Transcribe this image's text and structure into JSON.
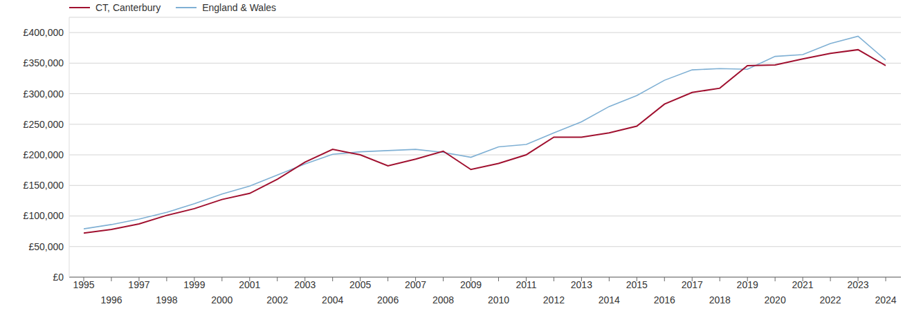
{
  "chart_data": {
    "type": "line",
    "x": [
      1995,
      1996,
      1997,
      1998,
      1999,
      2000,
      2001,
      2002,
      2003,
      2004,
      2005,
      2006,
      2007,
      2008,
      2009,
      2010,
      2011,
      2012,
      2013,
      2014,
      2015,
      2016,
      2017,
      2018,
      2019,
      2020,
      2021,
      2022,
      2023,
      2024
    ],
    "series": [
      {
        "name": "CT, Canterbury",
        "color": "#a0102f",
        "values": [
          72000,
          78000,
          87000,
          101000,
          112000,
          127000,
          137000,
          160000,
          188000,
          209000,
          200000,
          182000,
          193000,
          206000,
          176000,
          186000,
          200000,
          229000,
          229000,
          236000,
          247000,
          283000,
          302000,
          309000,
          346000,
          347000,
          357000,
          366000,
          372000,
          346000
        ]
      },
      {
        "name": "England & Wales",
        "color": "#7fb0d4",
        "values": [
          79000,
          86000,
          95000,
          106000,
          120000,
          136000,
          149000,
          167000,
          185000,
          201000,
          205000,
          207000,
          209000,
          204000,
          196000,
          213000,
          217000,
          236000,
          254000,
          279000,
          297000,
          322000,
          339000,
          341000,
          340000,
          361000,
          364000,
          382000,
          394000,
          355000
        ]
      }
    ],
    "xlim": [
      1995,
      2024
    ],
    "xticks": [
      1995,
      1996,
      1997,
      1998,
      1999,
      2000,
      2001,
      2002,
      2003,
      2004,
      2005,
      2006,
      2007,
      2008,
      2009,
      2010,
      2011,
      2012,
      2013,
      2014,
      2015,
      2016,
      2017,
      2018,
      2019,
      2020,
      2021,
      2022,
      2023,
      2024
    ],
    "ylim": [
      0,
      425000
    ],
    "yticks": [
      {
        "value": 0,
        "label": "£0"
      },
      {
        "value": 50000,
        "label": "£50,000"
      },
      {
        "value": 100000,
        "label": "£100,000"
      },
      {
        "value": 150000,
        "label": "£150,000"
      },
      {
        "value": 200000,
        "label": "£200,000"
      },
      {
        "value": 250000,
        "label": "£250,000"
      },
      {
        "value": 300000,
        "label": "£300,000"
      },
      {
        "value": 350000,
        "label": "£350,000"
      },
      {
        "value": 400000,
        "label": "£400,000"
      }
    ],
    "grid": true,
    "legend": "top-left"
  }
}
